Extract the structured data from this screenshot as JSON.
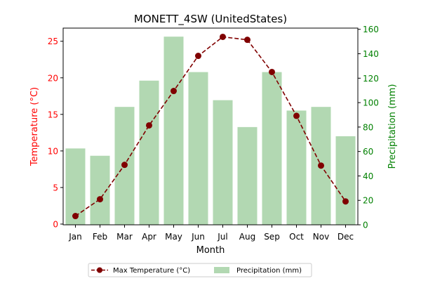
{
  "chart_data": {
    "type": "bar+line",
    "title": "MONETT_4SW (UnitedStates)",
    "xlabel": "Month",
    "ylabel_left": "Temperature (°C)",
    "ylabel_right": "Precipitation (mm)",
    "categories": [
      "Jan",
      "Feb",
      "Mar",
      "Apr",
      "May",
      "Jun",
      "Jul",
      "Aug",
      "Sep",
      "Oct",
      "Nov",
      "Dec"
    ],
    "ylim_left": [
      -0.1,
      26.8
    ],
    "ylim_right": [
      0,
      161
    ],
    "yticks_left": [
      0,
      5,
      10,
      15,
      20,
      25
    ],
    "yticks_right": [
      0,
      20,
      40,
      60,
      80,
      100,
      120,
      140,
      160
    ],
    "series": [
      {
        "name": "Max Temperature (°C)",
        "type": "line",
        "axis": "left",
        "color": "#800000",
        "values": [
          1.1,
          3.4,
          8.1,
          13.5,
          18.2,
          23.0,
          25.6,
          25.2,
          20.8,
          14.8,
          8.0,
          3.1
        ]
      },
      {
        "name": "Precipitation (mm)",
        "type": "bar",
        "axis": "right",
        "color": "#b2d8b2",
        "values": [
          62.5,
          56.5,
          96.5,
          118,
          154,
          125,
          102,
          80,
          125,
          93.5,
          96.5,
          72.5
        ]
      }
    ],
    "legend_position": "bottom-center",
    "colors": {
      "left_axis": "#ff0000",
      "right_axis": "#008000"
    }
  }
}
